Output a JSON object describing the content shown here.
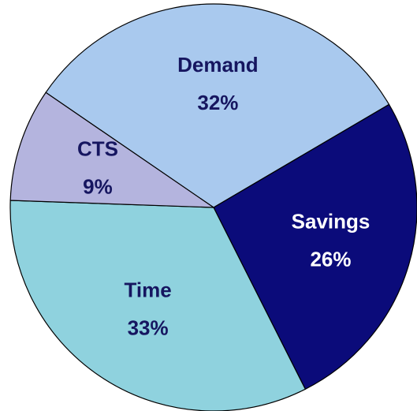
{
  "chart_data": {
    "type": "pie",
    "categories": [
      "Demand",
      "Savings",
      "Time",
      "CTS"
    ],
    "values": [
      32,
      26,
      33,
      9
    ],
    "value_labels": [
      "32%",
      "26%",
      "33%",
      "9%"
    ],
    "colors": [
      "#a9c9ee",
      "#0b0b7a",
      "#8fd2de",
      "#b4b4de"
    ],
    "label_colors": [
      "#161660",
      "#ffffff",
      "#161660",
      "#161660"
    ]
  }
}
